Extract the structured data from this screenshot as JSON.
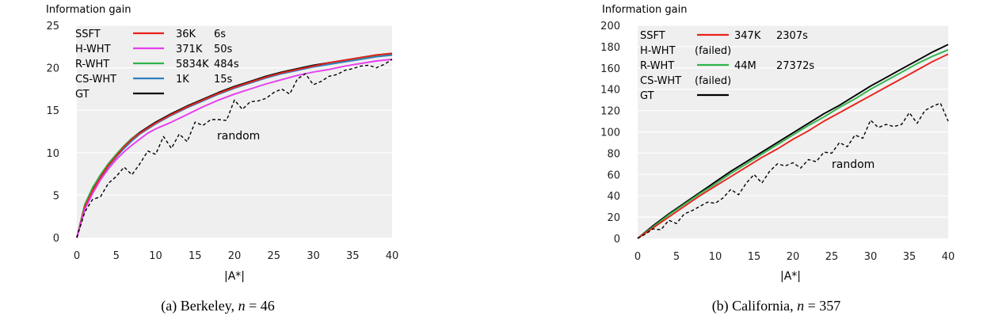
{
  "colors": {
    "plot_bg": "#efefef",
    "grid": "#ffffff",
    "SSFT": "#e8221b",
    "H-WHT": "#e63bf0",
    "R-WHT": "#2fb34a",
    "CS-WHT": "#2f7fc0",
    "GT": "#000000",
    "random": "#000000"
  },
  "chart_data": [
    {
      "type": "line",
      "ylabel": "Information gain",
      "xlabel": "|A*|",
      "caption": "(a) Berkeley, n = 46",
      "xlim": [
        0,
        40
      ],
      "ylim": [
        0,
        25
      ],
      "xticks": [
        0,
        5,
        10,
        15,
        20,
        25,
        30,
        35,
        40
      ],
      "yticks": [
        0,
        5,
        10,
        15,
        20,
        25
      ],
      "grid": "horizontal",
      "legend_position": "top-left",
      "legend": [
        {
          "name": "SSFT",
          "cols": [
            "36K",
            "6s"
          ]
        },
        {
          "name": "H-WHT",
          "cols": [
            "371K",
            "50s"
          ]
        },
        {
          "name": "R-WHT",
          "cols": [
            "5834K",
            "484s"
          ]
        },
        {
          "name": "CS-WHT",
          "cols": [
            "1K",
            "15s"
          ]
        },
        {
          "name": "GT",
          "cols": [
            "",
            ""
          ]
        }
      ],
      "annotation": {
        "text": "random",
        "x": 18,
        "y": 12.3
      },
      "series": [
        {
          "name": "GT",
          "style": "solid",
          "x": [
            0,
            1,
            2,
            3,
            4,
            5,
            6,
            7,
            8,
            9,
            10,
            12,
            14,
            16,
            18,
            20,
            22,
            24,
            26,
            28,
            30,
            32,
            34,
            36,
            38,
            40
          ],
          "values": [
            0,
            3.8,
            5.7,
            7.3,
            8.7,
            9.8,
            10.8,
            11.7,
            12.4,
            13.0,
            13.6,
            14.6,
            15.5,
            16.3,
            17.1,
            17.8,
            18.4,
            19.0,
            19.5,
            19.9,
            20.3,
            20.6,
            20.9,
            21.2,
            21.5,
            21.7
          ]
        },
        {
          "name": "R-WHT",
          "style": "solid",
          "x": [
            0,
            1,
            2,
            3,
            4,
            5,
            6,
            7,
            8,
            9,
            10,
            12,
            14,
            16,
            18,
            20,
            22,
            24,
            26,
            28,
            30,
            32,
            34,
            36,
            38,
            40
          ],
          "values": [
            0,
            3.9,
            5.9,
            7.4,
            8.7,
            9.8,
            10.8,
            11.7,
            12.3,
            12.9,
            13.5,
            14.5,
            15.4,
            16.2,
            17.0,
            17.7,
            18.3,
            18.9,
            19.4,
            19.8,
            20.2,
            20.5,
            20.8,
            21.1,
            21.4,
            21.6
          ]
        },
        {
          "name": "CS-WHT",
          "style": "solid",
          "x": [
            0,
            1,
            2,
            3,
            4,
            5,
            6,
            7,
            8,
            9,
            10,
            12,
            14,
            16,
            18,
            20,
            22,
            24,
            26,
            28,
            30,
            32,
            34,
            36,
            38,
            40
          ],
          "values": [
            0,
            3.5,
            5.4,
            7.0,
            8.4,
            9.5,
            10.5,
            11.4,
            12.2,
            12.8,
            13.4,
            14.4,
            15.3,
            16.1,
            16.9,
            17.6,
            18.2,
            18.8,
            19.3,
            19.7,
            20.1,
            20.4,
            20.7,
            21.0,
            21.3,
            21.5
          ]
        },
        {
          "name": "SSFT",
          "style": "solid",
          "x": [
            0,
            1,
            2,
            3,
            4,
            5,
            6,
            7,
            8,
            9,
            10,
            12,
            14,
            16,
            18,
            20,
            22,
            24,
            26,
            28,
            30,
            32,
            34,
            36,
            38,
            40
          ],
          "values": [
            0,
            3.6,
            5.5,
            7.1,
            8.5,
            9.6,
            10.7,
            11.6,
            12.3,
            12.9,
            13.5,
            14.5,
            15.4,
            16.2,
            17.0,
            17.7,
            18.3,
            18.9,
            19.4,
            19.8,
            20.2,
            20.6,
            20.9,
            21.2,
            21.5,
            21.7
          ]
        },
        {
          "name": "H-WHT",
          "style": "solid",
          "x": [
            0,
            1,
            2,
            3,
            4,
            5,
            6,
            7,
            8,
            9,
            10,
            12,
            14,
            16,
            18,
            20,
            22,
            24,
            26,
            28,
            30,
            32,
            34,
            36,
            38,
            40
          ],
          "values": [
            0,
            3.3,
            5.2,
            6.8,
            8.1,
            9.2,
            10.1,
            10.9,
            11.6,
            12.3,
            12.8,
            13.6,
            14.5,
            15.4,
            16.2,
            16.9,
            17.5,
            18.1,
            18.6,
            19.1,
            19.5,
            19.8,
            20.2,
            20.5,
            20.8,
            21.0
          ]
        },
        {
          "name": "random",
          "style": "dashed",
          "x": [
            0,
            1,
            2,
            3,
            4,
            5,
            6,
            7,
            8,
            9,
            10,
            11,
            12,
            13,
            14,
            15,
            16,
            17,
            18,
            19,
            20,
            21,
            22,
            23,
            24,
            25,
            26,
            27,
            28,
            29,
            30,
            31,
            32,
            33,
            34,
            35,
            36,
            37,
            38,
            39,
            40
          ],
          "values": [
            0,
            3.0,
            4.5,
            4.8,
            6.4,
            7.2,
            8.3,
            7.4,
            8.7,
            10.2,
            9.8,
            11.9,
            10.5,
            12.2,
            11.3,
            13.6,
            13.2,
            13.9,
            13.9,
            13.8,
            16.2,
            15.1,
            16.0,
            16.1,
            16.4,
            17.1,
            17.5,
            16.9,
            18.7,
            19.3,
            18.0,
            18.4,
            19.0,
            19.2,
            19.7,
            19.9,
            20.2,
            20.3,
            20.0,
            20.4,
            21.0
          ]
        }
      ]
    },
    {
      "type": "line",
      "ylabel": "Information gain",
      "xlabel": "|A*|",
      "caption": "(b) California, n = 357",
      "xlim": [
        0,
        40
      ],
      "ylim": [
        0,
        200
      ],
      "xticks": [
        0,
        5,
        10,
        15,
        20,
        25,
        30,
        35,
        40
      ],
      "yticks": [
        0,
        20,
        40,
        60,
        80,
        100,
        120,
        140,
        160,
        180,
        200
      ],
      "grid": "horizontal",
      "legend_position": "top-left",
      "legend": [
        {
          "name": "SSFT",
          "cols": [
            "347K",
            "2307s"
          ]
        },
        {
          "name": "H-WHT",
          "cols": [
            "(failed)",
            ""
          ]
        },
        {
          "name": "R-WHT",
          "cols": [
            "44M",
            "27372s"
          ]
        },
        {
          "name": "CS-WHT",
          "cols": [
            "(failed)",
            ""
          ]
        },
        {
          "name": "GT",
          "cols": [
            "",
            ""
          ]
        }
      ],
      "annotation": {
        "text": "random",
        "x": 25.5,
        "y": 67
      },
      "series": [
        {
          "name": "GT",
          "style": "solid",
          "x": [
            0,
            2,
            4,
            6,
            8,
            10,
            12,
            14,
            16,
            18,
            20,
            22,
            24,
            26,
            28,
            30,
            32,
            34,
            36,
            38,
            40
          ],
          "values": [
            0,
            12,
            23,
            33,
            43,
            53,
            63,
            72,
            81,
            90,
            99,
            108,
            117,
            125,
            134,
            143,
            151,
            159,
            167,
            175,
            182
          ]
        },
        {
          "name": "R-WHT",
          "style": "solid",
          "x": [
            0,
            2,
            4,
            6,
            8,
            10,
            12,
            14,
            16,
            18,
            20,
            22,
            24,
            26,
            28,
            30,
            32,
            34,
            36,
            38,
            40
          ],
          "values": [
            0,
            11,
            22,
            32,
            42,
            51,
            61,
            70,
            79,
            88,
            97,
            106,
            114,
            123,
            131,
            140,
            148,
            156,
            164,
            171,
            177
          ]
        },
        {
          "name": "SSFT",
          "style": "solid",
          "x": [
            0,
            2,
            4,
            6,
            8,
            10,
            12,
            14,
            16,
            18,
            20,
            22,
            24,
            26,
            28,
            30,
            32,
            34,
            36,
            38,
            40
          ],
          "values": [
            0,
            10,
            20,
            30,
            40,
            49,
            58,
            67,
            76,
            84,
            93,
            101,
            110,
            118,
            126,
            134,
            142,
            150,
            158,
            166,
            173
          ]
        },
        {
          "name": "random",
          "style": "dashed",
          "x": [
            0,
            1,
            2,
            3,
            4,
            5,
            6,
            7,
            8,
            9,
            10,
            11,
            12,
            13,
            14,
            15,
            16,
            17,
            18,
            19,
            20,
            21,
            22,
            23,
            24,
            25,
            26,
            27,
            28,
            29,
            30,
            31,
            32,
            33,
            34,
            35,
            36,
            37,
            38,
            39,
            40
          ],
          "values": [
            0,
            4,
            9,
            8,
            17,
            14,
            23,
            26,
            30,
            34,
            33,
            38,
            46,
            41,
            52,
            60,
            52,
            63,
            70,
            68,
            71,
            66,
            74,
            72,
            81,
            80,
            90,
            86,
            97,
            94,
            111,
            104,
            107,
            105,
            107,
            118,
            108,
            120,
            124,
            127,
            110
          ]
        }
      ]
    }
  ]
}
